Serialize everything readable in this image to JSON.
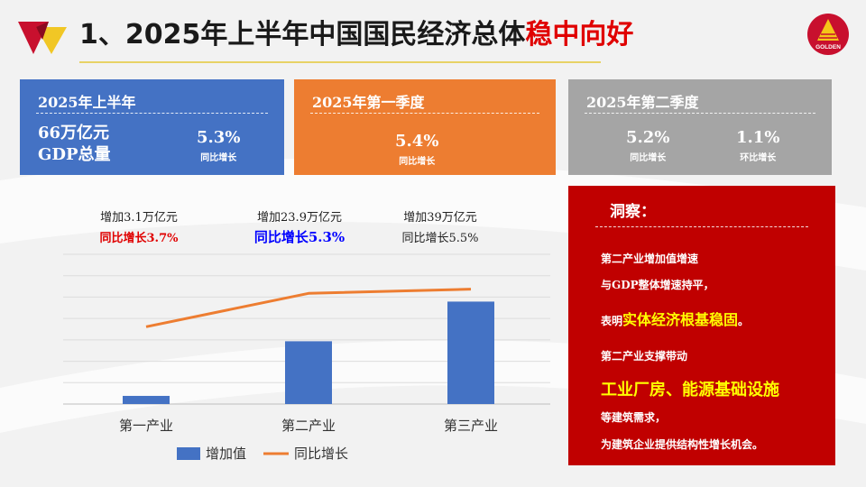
{
  "title": {
    "main": "1、2025年上半年中国国民经济总体",
    "highlight": "稳中向好"
  },
  "logo": {
    "text": "GOLDEN"
  },
  "boxes": {
    "h1": {
      "heading": "2025年上半年",
      "gdp_value": "66万亿元",
      "gdp_label": "GDP总量",
      "growth_value": "5.3%",
      "growth_label": "同比增长"
    },
    "q1": {
      "heading": "2025年第一季度",
      "growth_value": "5.4%",
      "growth_label": "同比增长"
    },
    "q2": {
      "heading": "2025年第二季度",
      "yoy_value": "5.2%",
      "yoy_label": "同比增长",
      "qoq_value": "1.1%",
      "qoq_label": "环比增长"
    }
  },
  "chart_data": {
    "type": "bar",
    "categories": [
      "第一产业",
      "第二产业",
      "第三产业"
    ],
    "series": [
      {
        "name": "增加值",
        "type": "bar",
        "color": "#4472c4",
        "values": [
          3.1,
          23.9,
          39
        ]
      },
      {
        "name": "同比增长",
        "type": "line",
        "color": "#ed7d31",
        "values": [
          3.7,
          5.3,
          5.5
        ]
      }
    ],
    "annotations": [
      {
        "line1": "增加3.1万亿元",
        "line2": "同比增长3.7%",
        "line2_color": "#e00000"
      },
      {
        "line1": "增加23.9万亿元",
        "line2": "同比增长5.3%",
        "line2_color": "#0000ff"
      },
      {
        "line1": "增加39万亿元",
        "line2": "同比增长5.5%",
        "line2_color": "#222222"
      }
    ],
    "grid": true,
    "legend": "bottom"
  },
  "insight": {
    "title": "洞察：",
    "l1": "第二产业增加值增速",
    "l2": "与GDP整体增速持平，",
    "l3_prefix": "表明",
    "l3_highlight": "实体经济根基稳固",
    "l3_suffix": "。",
    "l4": "第二产业支撑带动",
    "l5": "工业厂房、能源基础设施",
    "l6": "等建筑需求，",
    "l7": "为建筑企业提供结构性增长机会。"
  }
}
